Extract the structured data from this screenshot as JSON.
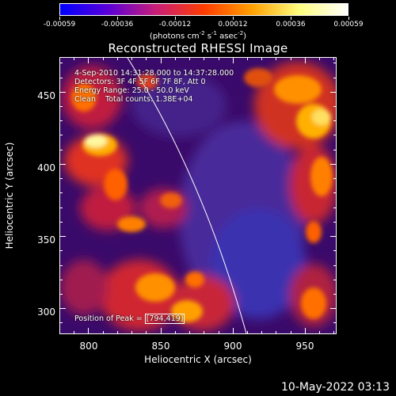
{
  "colorbar": {
    "tick_labels": [
      "-0.00059",
      "-0.00036",
      "-0.00012",
      "0.00012",
      "0.00036",
      "0.00059"
    ],
    "units_prefix": "(photons cm",
    "units_exp1": "-2",
    "units_mid1": " s",
    "units_exp2": "-1",
    "units_mid2": " asec",
    "units_exp3": "-2",
    "units_suffix": ")",
    "gradient_colors": [
      "#0000ff",
      "#5a00d8",
      "#c81e78",
      "#ff3c00",
      "#ffa000",
      "#ffff80",
      "#ffffff"
    ]
  },
  "title": "Reconstructed RHESSI Image",
  "info": {
    "time_range": "4-Sep-2010 14:31:28.000 to 14:37:28.000",
    "detectors": "Detectors: 3F 4F 5F 6F 7F 8F, Att 0",
    "energy": "Energy Range: 25.0 - 50.0 keV",
    "clean": "Clean    Total counts: 1.38E+04",
    "peak_prefix": "Position of Peak = ",
    "peak_value": "[794,419]"
  },
  "axes": {
    "xlabel": "Heliocentric X (arcsec)",
    "ylabel": "Heliocentric Y (arcsec)",
    "x_ticks": [
      "800",
      "850",
      "900",
      "950"
    ],
    "y_ticks": [
      "300",
      "350",
      "400",
      "450"
    ],
    "x_range": [
      780,
      972
    ],
    "y_range": [
      282,
      474
    ]
  },
  "timestamp": "10-May-2022 03:13"
}
